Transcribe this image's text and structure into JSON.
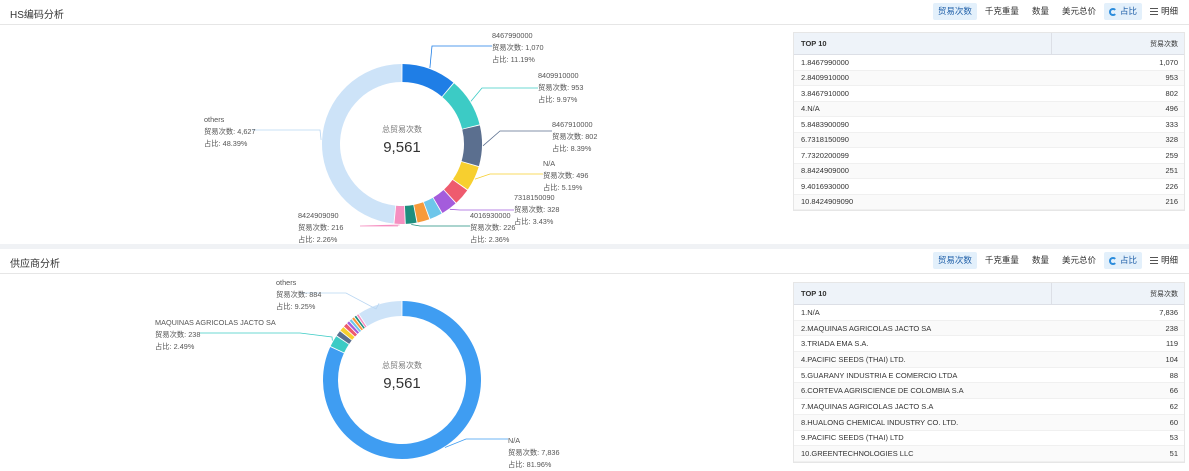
{
  "toolbar": {
    "buttons": [
      "贸易次数",
      "千克重量",
      "数量",
      "美元总价"
    ],
    "views": [
      "占比",
      "明细"
    ]
  },
  "sections": [
    {
      "title": "HS编码分析",
      "table_header": "TOP 10",
      "table_value_header": "贸易次数",
      "table_rows": [
        [
          "1.8467990000",
          "1,070"
        ],
        [
          "2.8409910000",
          "953"
        ],
        [
          "3.8467910000",
          "802"
        ],
        [
          "4.N/A",
          "496"
        ],
        [
          "5.8483900090",
          "333"
        ],
        [
          "6.7318150090",
          "328"
        ],
        [
          "7.7320200099",
          "259"
        ],
        [
          "8.8424909000",
          "251"
        ],
        [
          "9.4016930000",
          "226"
        ],
        [
          "10.8424909090",
          "216"
        ]
      ]
    },
    {
      "title": "供应商分析",
      "table_header": "TOP 10",
      "table_value_header": "贸易次数",
      "table_rows": [
        [
          "1.N/A",
          "7,836"
        ],
        [
          "2.MAQUINAS AGRICOLAS JACTO SA",
          "238"
        ],
        [
          "3.TRIADA EMA S.A.",
          "119"
        ],
        [
          "4.PACIFIC SEEDS (THAI) LTD.",
          "104"
        ],
        [
          "5.GUARANY INDUSTRIA E COMERCIO LTDA",
          "88"
        ],
        [
          "6.CORTEVA AGRISCIENCE DE COLOMBIA S.A",
          "66"
        ],
        [
          "7.MAQUINAS AGRICOLAS JACTO S.A",
          "62"
        ],
        [
          "8.HUALONG CHEMICAL INDUSTRY CO. LTD.",
          "60"
        ],
        [
          "9.PACIFIC SEEDS (THAI) LTD",
          "53"
        ],
        [
          "10.GREENTECHNOLOGIES LLC",
          "51"
        ]
      ]
    }
  ],
  "chart_data": [
    {
      "type": "pie",
      "donut": true,
      "center_label": "总贸易次数",
      "center_value": "9,561",
      "label_value_prefix": "贸易次数: ",
      "label_share_prefix": "占比: ",
      "slices": [
        {
          "name": "8467990000",
          "value": 1070,
          "value_text": "1,070",
          "share": "11.19%",
          "color": "#1f7ee6",
          "labeled": true
        },
        {
          "name": "8409910000",
          "value": 953,
          "value_text": "953",
          "share": "9.97%",
          "color": "#3ccbc5",
          "labeled": true
        },
        {
          "name": "8467910000",
          "value": 802,
          "value_text": "802",
          "share": "8.39%",
          "color": "#5b6f8f",
          "labeled": true
        },
        {
          "name": "N/A",
          "value": 496,
          "value_text": "496",
          "share": "5.19%",
          "color": "#f7cf2f",
          "labeled": true
        },
        {
          "name": "8483900090",
          "value": 333,
          "value_text": "333",
          "share": "",
          "color": "#ee5b6e",
          "labeled": false
        },
        {
          "name": "7318150090",
          "value": 328,
          "value_text": "328",
          "share": "3.43%",
          "color": "#a45cdc",
          "labeled": true
        },
        {
          "name": "7320200099",
          "value": 259,
          "value_text": "259",
          "share": "",
          "color": "#6ec6ea",
          "labeled": false
        },
        {
          "name": "8424909000",
          "value": 251,
          "value_text": "251",
          "share": "",
          "color": "#f79a3a",
          "labeled": false
        },
        {
          "name": "4016930000",
          "value": 226,
          "value_text": "226",
          "share": "2.36%",
          "color": "#1e8e7e",
          "labeled": true
        },
        {
          "name": "8424909090",
          "value": 216,
          "value_text": "216",
          "share": "2.26%",
          "color": "#f58fc0",
          "labeled": true
        },
        {
          "name": "others",
          "value": 4627,
          "value_text": "4,627",
          "share": "48.39%",
          "color": "#cde3f8",
          "labeled": true
        }
      ]
    },
    {
      "type": "pie",
      "donut": true,
      "center_label": "总贸易次数",
      "center_value": "9,561",
      "label_value_prefix": "贸易次数: ",
      "label_share_prefix": "占比: ",
      "slices": [
        {
          "name": "N/A",
          "value": 7836,
          "value_text": "7,836",
          "share": "81.96%",
          "color": "#3f9df2",
          "labeled": true
        },
        {
          "name": "MAQUINAS AGRICOLAS JACTO SA",
          "value": 238,
          "value_text": "238",
          "share": "2.49%",
          "color": "#3ccbc5",
          "labeled": true
        },
        {
          "name": "TRIADA EMA S.A.",
          "value": 119,
          "value_text": "119",
          "share": "",
          "color": "#5b6f8f",
          "labeled": false
        },
        {
          "name": "PACIFIC SEEDS (THAI) LTD.",
          "value": 104,
          "value_text": "104",
          "share": "",
          "color": "#f7cf2f",
          "labeled": false
        },
        {
          "name": "GUARANY INDUSTRIA E COMERCIO LTDA",
          "value": 88,
          "value_text": "88",
          "share": "",
          "color": "#ee5b6e",
          "labeled": false
        },
        {
          "name": "CORTEVA AGRISCIENCE DE COLOMBIA S.A",
          "value": 66,
          "value_text": "66",
          "share": "",
          "color": "#a45cdc",
          "labeled": false
        },
        {
          "name": "MAQUINAS AGRICOLAS JACTO S.A",
          "value": 62,
          "value_text": "62",
          "share": "",
          "color": "#6ec6ea",
          "labeled": false
        },
        {
          "name": "HUALONG CHEMICAL INDUSTRY CO. LTD.",
          "value": 60,
          "value_text": "60",
          "share": "",
          "color": "#f79a3a",
          "labeled": false
        },
        {
          "name": "PACIFIC SEEDS (THAI) LTD",
          "value": 53,
          "value_text": "53",
          "share": "",
          "color": "#1e8e7e",
          "labeled": false
        },
        {
          "name": "GREENTECHNOLOGIES LLC",
          "value": 51,
          "value_text": "51",
          "share": "",
          "color": "#f58fc0",
          "labeled": false
        },
        {
          "name": "others",
          "value": 884,
          "value_text": "884",
          "share": "9.25%",
          "color": "#cde3f8",
          "labeled": true
        }
      ]
    }
  ]
}
